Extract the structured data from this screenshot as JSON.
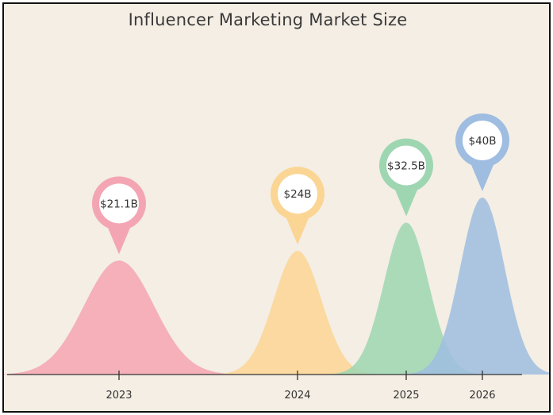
{
  "chart_data": {
    "type": "area",
    "title": "Influencer Marketing Market Size",
    "categories": [
      "2023",
      "2024",
      "2025",
      "2026"
    ],
    "values": [
      21.1,
      24,
      32.5,
      40
    ],
    "value_labels": [
      "$21.1B",
      "$24B",
      "$32.5B",
      "$40B"
    ],
    "colors": [
      "#f4a5b3",
      "#fbd594",
      "#9ed6b2",
      "#9ebde0"
    ],
    "unit": "$B",
    "axis_line": true,
    "grid": false,
    "legend": "none"
  }
}
